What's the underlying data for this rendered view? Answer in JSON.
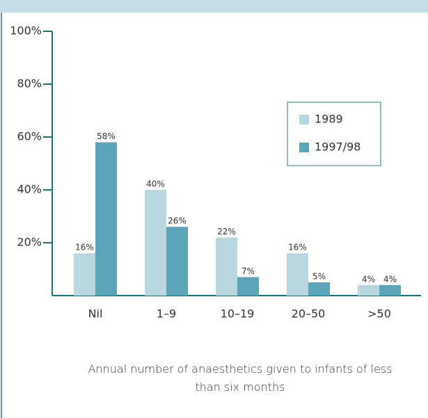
{
  "chart_data": {
    "type": "bar",
    "x_label": "Annual number of anaesthetics given to infants of less than six months",
    "categories": [
      "Nil",
      "1–9",
      "10–19",
      "20–50",
      ">50"
    ],
    "series": [
      {
        "name": "1989",
        "color": "#b9d7df",
        "values": [
          16,
          40,
          22,
          16,
          4
        ],
        "value_labels": [
          "16%",
          "40%",
          "22%",
          "16%",
          "4%"
        ]
      },
      {
        "name": "1997/98",
        "color": "#5aa5b8",
        "values": [
          58,
          26,
          7,
          5,
          4
        ],
        "value_labels": [
          "58%",
          "26%",
          "7%",
          "5%",
          "4%"
        ]
      }
    ],
    "ylim": [
      0,
      100
    ],
    "yticks": [
      {
        "value": 20,
        "label": "20%"
      },
      {
        "value": 40,
        "label": "40%"
      },
      {
        "value": 60,
        "label": "60%"
      },
      {
        "value": 80,
        "label": "80%"
      },
      {
        "value": 100,
        "label": "100%"
      }
    ]
  }
}
